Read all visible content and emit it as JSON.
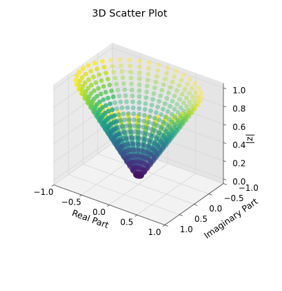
{
  "chart_data": {
    "type": "scatter",
    "projection": "3d",
    "title": "3D Scatter Plot",
    "xlabel": "Real Part",
    "ylabel": "Imaginary Part",
    "zlabel": "|z|",
    "xlim": [
      -1.0,
      1.0
    ],
    "ylim": [
      -1.0,
      1.0
    ],
    "zlim": [
      0.0,
      1.0
    ],
    "xticks": [
      "−1.0",
      "−0.5",
      "0.0",
      "0.5",
      "1.0"
    ],
    "yticks": [
      "−1.0",
      "−0.5",
      "0.0",
      "0.5",
      "1.0"
    ],
    "zticks": [
      "0.0",
      "0.2",
      "0.4",
      "0.6",
      "0.8",
      "1.0"
    ],
    "grid": true,
    "colormap": "viridis",
    "color_by": "z",
    "surface": "cone: z = sqrt(x^2 + y^2)",
    "sampling": {
      "radii_r": [
        0.05,
        0.1,
        0.15,
        0.2,
        0.25,
        0.3,
        0.35,
        0.4,
        0.45,
        0.5,
        0.55,
        0.6,
        0.65,
        0.7,
        0.75,
        0.8,
        0.85,
        0.9,
        0.95,
        1.0
      ],
      "angles_per_ring": 40,
      "z_formula": "z = r"
    },
    "series": [
      {
        "name": "",
        "color_range": [
          "#440154",
          "#fde725"
        ]
      }
    ]
  }
}
